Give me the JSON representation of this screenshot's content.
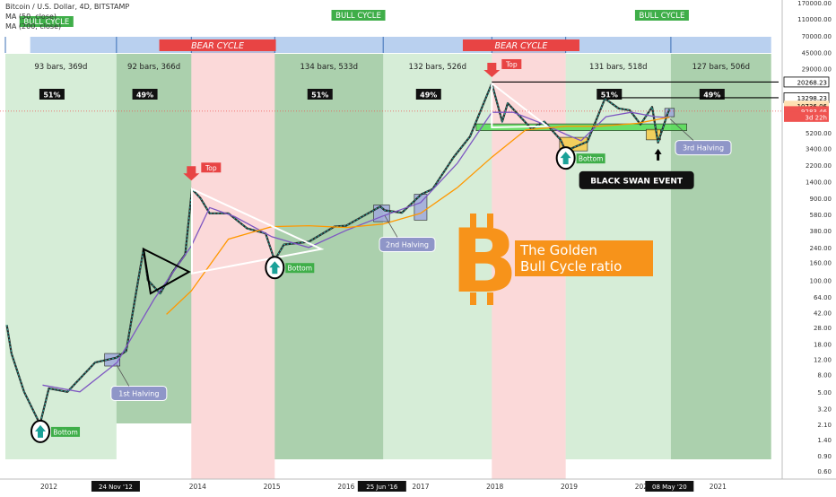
{
  "header": {
    "symbol_line": "Bitcoin / U.S. Dollar, 4D, BITSTAMP",
    "ma50": "MA (50, close)",
    "ma200": "MA (200, close)"
  },
  "colors": {
    "bull_green": "#66bb6a",
    "bear_red": "#ef5350",
    "band_blue": "#90b8e0",
    "bitcoin_orange": "#f7931a",
    "candle_up": "#26a69a",
    "candle_down": "#ef5350",
    "ma50_color": "#7e57c2",
    "ma200_color": "#ff9800",
    "support_green": "#55dd55"
  },
  "chart_data": {
    "type": "line",
    "title": "Bitcoin / U.S. Dollar, 4D, BITSTAMP",
    "y_scale": "log",
    "ylim": [
      0.6,
      170000
    ],
    "price_ticks": [
      "170000.00",
      "110000.00",
      "70000.00",
      "45000.00",
      "29000.00",
      "20268.23",
      "13298.23",
      "10736.06",
      "9283.46",
      "5200.00",
      "3400.00",
      "2200.00",
      "1400.00",
      "900.00",
      "580.00",
      "380.00",
      "240.00",
      "160.00",
      "100.00",
      "64.00",
      "42.00",
      "28.00",
      "18.00",
      "12.00",
      "8.00",
      "5.00",
      "3.20",
      "2.10",
      "1.40",
      "0.90",
      "0.60"
    ],
    "price_tick_values": [
      170000,
      110000,
      70000,
      45000,
      29000,
      20268.23,
      13298.23,
      10736.06,
      9283.46,
      5200,
      3400,
      2200,
      1400,
      900,
      580,
      380,
      240,
      160,
      100,
      64,
      42,
      28,
      18,
      12,
      8,
      5,
      3.2,
      2.1,
      1.4,
      0.9,
      0.6
    ],
    "price_tags": [
      {
        "label": "20268.23",
        "value": 20268.23,
        "bg": "#ffffff",
        "fg": "#000000"
      },
      {
        "label": "13298.23",
        "value": 13298.23,
        "bg": "#ffffff",
        "fg": "#000000"
      },
      {
        "label": "10736.06",
        "value": 10736.06,
        "bg": "#ffe0b2",
        "fg": "#000000"
      },
      {
        "label": "9283.46",
        "value": 9283.46,
        "bg": "#ef5350",
        "fg": "#ffffff"
      },
      {
        "label": "3d 22h",
        "value": 7950,
        "bg": "#ef5350",
        "fg": "#ffffff"
      }
    ],
    "x_ticks": [
      "2012",
      "24 Nov '12",
      "2014",
      "2015",
      "2016",
      "25 Jun '16",
      "2017",
      "2018",
      "2019",
      "2020",
      "08 May '20",
      "2021"
    ],
    "x_tick_dates": [
      "2012-01-01",
      "2012-11-24",
      "2014-01-01",
      "2015-01-01",
      "2016-01-01",
      "2016-06-25",
      "2017-01-01",
      "2018-01-01",
      "2019-01-01",
      "2020-01-01",
      "2020-05-08",
      "2021-01-01"
    ],
    "x_tick_highlight": [
      "24 Nov '12",
      "25 Jun '16",
      "08 May '20"
    ],
    "cycles": [
      {
        "type": "bull",
        "start": "2011-06-01",
        "end": "2012-11-28",
        "label": "93 bars, 369d",
        "ratio": "51%"
      },
      {
        "type": "bull",
        "start": "2012-11-28",
        "end": "2013-12-01",
        "label": "92 bars, 366d",
        "ratio": "49%"
      },
      {
        "type": "bear",
        "start": "2013-12-01",
        "end": "2015-01-15",
        "label": ""
      },
      {
        "type": "bull",
        "start": "2015-01-15",
        "end": "2016-07-01",
        "label": "134 bars, 533d",
        "ratio": "51%"
      },
      {
        "type": "bull",
        "start": "2016-07-01",
        "end": "2017-12-17",
        "label": "132 bars, 526d",
        "ratio": "49%"
      },
      {
        "type": "bear",
        "start": "2017-12-17",
        "end": "2018-12-15",
        "label": ""
      },
      {
        "type": "bull",
        "start": "2018-12-15",
        "end": "2020-05-15",
        "label": "131 bars, 518d",
        "ratio": "51%"
      },
      {
        "type": "bull",
        "start": "2020-05-15",
        "end": "2021-09-20",
        "label": "127 bars, 506d",
        "ratio": "49%"
      }
    ],
    "band_labels": [
      {
        "text": "BULL CYCLE",
        "date": "2011-12-20"
      },
      {
        "text": "BEAR CYCLE",
        "date": "2014-05-01"
      },
      {
        "text": "BULL CYCLE",
        "date": "2016-03-01"
      },
      {
        "text": "BEAR CYCLE",
        "date": "2018-06-01"
      },
      {
        "text": "BULL CYCLE",
        "date": "2020-04-01"
      }
    ],
    "annotations": [
      {
        "text": "Top",
        "date": "2013-12-01",
        "price": 1250
      },
      {
        "text": "Top",
        "date": "2017-12-17",
        "price": 20000
      },
      {
        "text": "Bottom",
        "date": "2011-11-20",
        "price": 2.1
      },
      {
        "text": "Bottom",
        "date": "2015-01-15",
        "price": 170
      },
      {
        "text": "Bottom",
        "date": "2018-12-15",
        "price": 3200
      },
      {
        "text": "1st Halving",
        "date": "2012-11-28",
        "price": 12
      },
      {
        "text": "2nd Halving",
        "date": "2016-07-09",
        "price": 650
      },
      {
        "text": "3rd Halving",
        "date": "2020-05-11",
        "price": 8700
      },
      {
        "text": "BLACK SWAN EVENT",
        "date": "2020-03-13",
        "price": 4000
      }
    ],
    "title_text_1": "The Golden",
    "title_text_2": "Bull Cycle ratio",
    "series": [
      {
        "name": "BTCUSD",
        "points": [
          [
            "2011-06-08",
            30
          ],
          [
            "2011-07-01",
            14
          ],
          [
            "2011-09-01",
            5
          ],
          [
            "2011-11-18",
            2.1
          ],
          [
            "2012-01-01",
            5.5
          ],
          [
            "2012-04-01",
            5
          ],
          [
            "2012-08-15",
            11
          ],
          [
            "2012-11-28",
            12.5
          ],
          [
            "2013-01-15",
            15
          ],
          [
            "2013-04-10",
            230
          ],
          [
            "2013-05-01",
            100
          ],
          [
            "2013-07-01",
            70
          ],
          [
            "2013-09-01",
            125
          ],
          [
            "2013-11-01",
            200
          ],
          [
            "2013-12-04",
            1150
          ],
          [
            "2014-01-15",
            900
          ],
          [
            "2014-03-01",
            600
          ],
          [
            "2014-06-01",
            600
          ],
          [
            "2014-09-01",
            400
          ],
          [
            "2014-12-01",
            350
          ],
          [
            "2015-01-14",
            170
          ],
          [
            "2015-03-01",
            260
          ],
          [
            "2015-07-01",
            280
          ],
          [
            "2015-11-04",
            420
          ],
          [
            "2016-01-01",
            430
          ],
          [
            "2016-06-17",
            720
          ],
          [
            "2016-07-09",
            650
          ],
          [
            "2016-10-01",
            610
          ],
          [
            "2017-01-05",
            1000
          ],
          [
            "2017-03-01",
            1150
          ],
          [
            "2017-06-12",
            2700
          ],
          [
            "2017-09-01",
            4700
          ],
          [
            "2017-12-17",
            19500
          ],
          [
            "2018-02-06",
            7000
          ],
          [
            "2018-03-05",
            11500
          ],
          [
            "2018-06-29",
            5800
          ],
          [
            "2018-09-01",
            7000
          ],
          [
            "2018-11-20",
            4300
          ],
          [
            "2018-12-15",
            3200
          ],
          [
            "2019-04-01",
            4100
          ],
          [
            "2019-06-26",
            13000
          ],
          [
            "2019-09-01",
            10000
          ],
          [
            "2019-10-26",
            9500
          ],
          [
            "2019-12-18",
            6500
          ],
          [
            "2020-02-13",
            10400
          ],
          [
            "2020-03-13",
            4000
          ],
          [
            "2020-04-29",
            8700
          ],
          [
            "2020-05-08",
            9800
          ]
        ]
      },
      {
        "name": "MA (50, close)",
        "points": [
          [
            "2011-12-01",
            6
          ],
          [
            "2012-06-01",
            5
          ],
          [
            "2012-12-01",
            11
          ],
          [
            "2013-06-01",
            60
          ],
          [
            "2013-12-01",
            250
          ],
          [
            "2014-03-01",
            700
          ],
          [
            "2014-07-01",
            550
          ],
          [
            "2015-01-01",
            320
          ],
          [
            "2015-07-01",
            240
          ],
          [
            "2016-01-01",
            380
          ],
          [
            "2016-07-01",
            560
          ],
          [
            "2017-01-01",
            800
          ],
          [
            "2017-07-01",
            2300
          ],
          [
            "2017-12-17",
            9000
          ],
          [
            "2018-04-01",
            9000
          ],
          [
            "2018-09-01",
            6500
          ],
          [
            "2018-12-15",
            5000
          ],
          [
            "2019-03-01",
            4200
          ],
          [
            "2019-07-01",
            8000
          ],
          [
            "2019-11-01",
            9000
          ],
          [
            "2020-03-01",
            8000
          ],
          [
            "2020-05-08",
            7800
          ]
        ]
      },
      {
        "name": "MA (200, close)",
        "points": [
          [
            "2013-08-01",
            40
          ],
          [
            "2013-12-01",
            75
          ],
          [
            "2014-06-01",
            300
          ],
          [
            "2015-01-01",
            420
          ],
          [
            "2015-07-01",
            430
          ],
          [
            "2016-01-01",
            410
          ],
          [
            "2016-07-01",
            450
          ],
          [
            "2017-01-01",
            600
          ],
          [
            "2017-07-01",
            1200
          ],
          [
            "2017-12-17",
            2700
          ],
          [
            "2018-06-01",
            5600
          ],
          [
            "2018-12-15",
            6200
          ],
          [
            "2019-06-01",
            6200
          ],
          [
            "2019-12-01",
            6700
          ],
          [
            "2020-05-08",
            7900
          ]
        ]
      }
    ],
    "trendlines": [
      {
        "kind": "triangle",
        "points": [
          [
            "2013-12-04",
            1150
          ],
          [
            "2015-09-01",
            230
          ],
          [
            "2013-12-04",
            120
          ]
        ]
      },
      {
        "kind": "triangle",
        "points": [
          [
            "2017-12-17",
            19500
          ],
          [
            "2018-09-15",
            6200
          ],
          [
            "2017-12-17",
            6000
          ]
        ]
      },
      {
        "kind": "pennant",
        "points": [
          [
            "2013-04-10",
            230
          ],
          [
            "2013-11-20",
            125
          ],
          [
            "2013-05-15",
            70
          ]
        ]
      },
      {
        "kind": "hline",
        "price": 20268.23,
        "from": "2017-12-17",
        "to": "2021-09-30"
      },
      {
        "kind": "hline",
        "price": 13298.23,
        "from": "2019-06-26",
        "to": "2021-09-30"
      }
    ],
    "boxes": [
      {
        "label": "support",
        "from": "2017-10-01",
        "to": "2020-08-01",
        "low": 5500,
        "high": 6600,
        "color": "#55dd55"
      },
      {
        "label": "bottom-accum",
        "from": "2018-11-15",
        "to": "2019-04-01",
        "low": 3200,
        "high": 4600,
        "color": "#f7c948"
      },
      {
        "label": "halving-1",
        "from": "2012-10-01",
        "to": "2012-12-15",
        "low": 10,
        "high": 14,
        "color": "#9fa8da"
      },
      {
        "label": "halving-2a",
        "from": "2016-05-15",
        "to": "2016-08-01",
        "low": 480,
        "high": 750,
        "color": "#9fa8da"
      },
      {
        "label": "halving-2b",
        "from": "2016-12-01",
        "to": "2017-02-01",
        "low": 500,
        "high": 1000,
        "color": "#9fa8da"
      },
      {
        "label": "halving-3",
        "from": "2020-04-15",
        "to": "2020-06-01",
        "low": 8000,
        "high": 10000,
        "color": "#9fa8da"
      },
      {
        "label": "blackswan",
        "from": "2020-01-15",
        "to": "2020-03-25",
        "low": 4300,
        "high": 5700,
        "color": "#f7c948"
      }
    ]
  }
}
